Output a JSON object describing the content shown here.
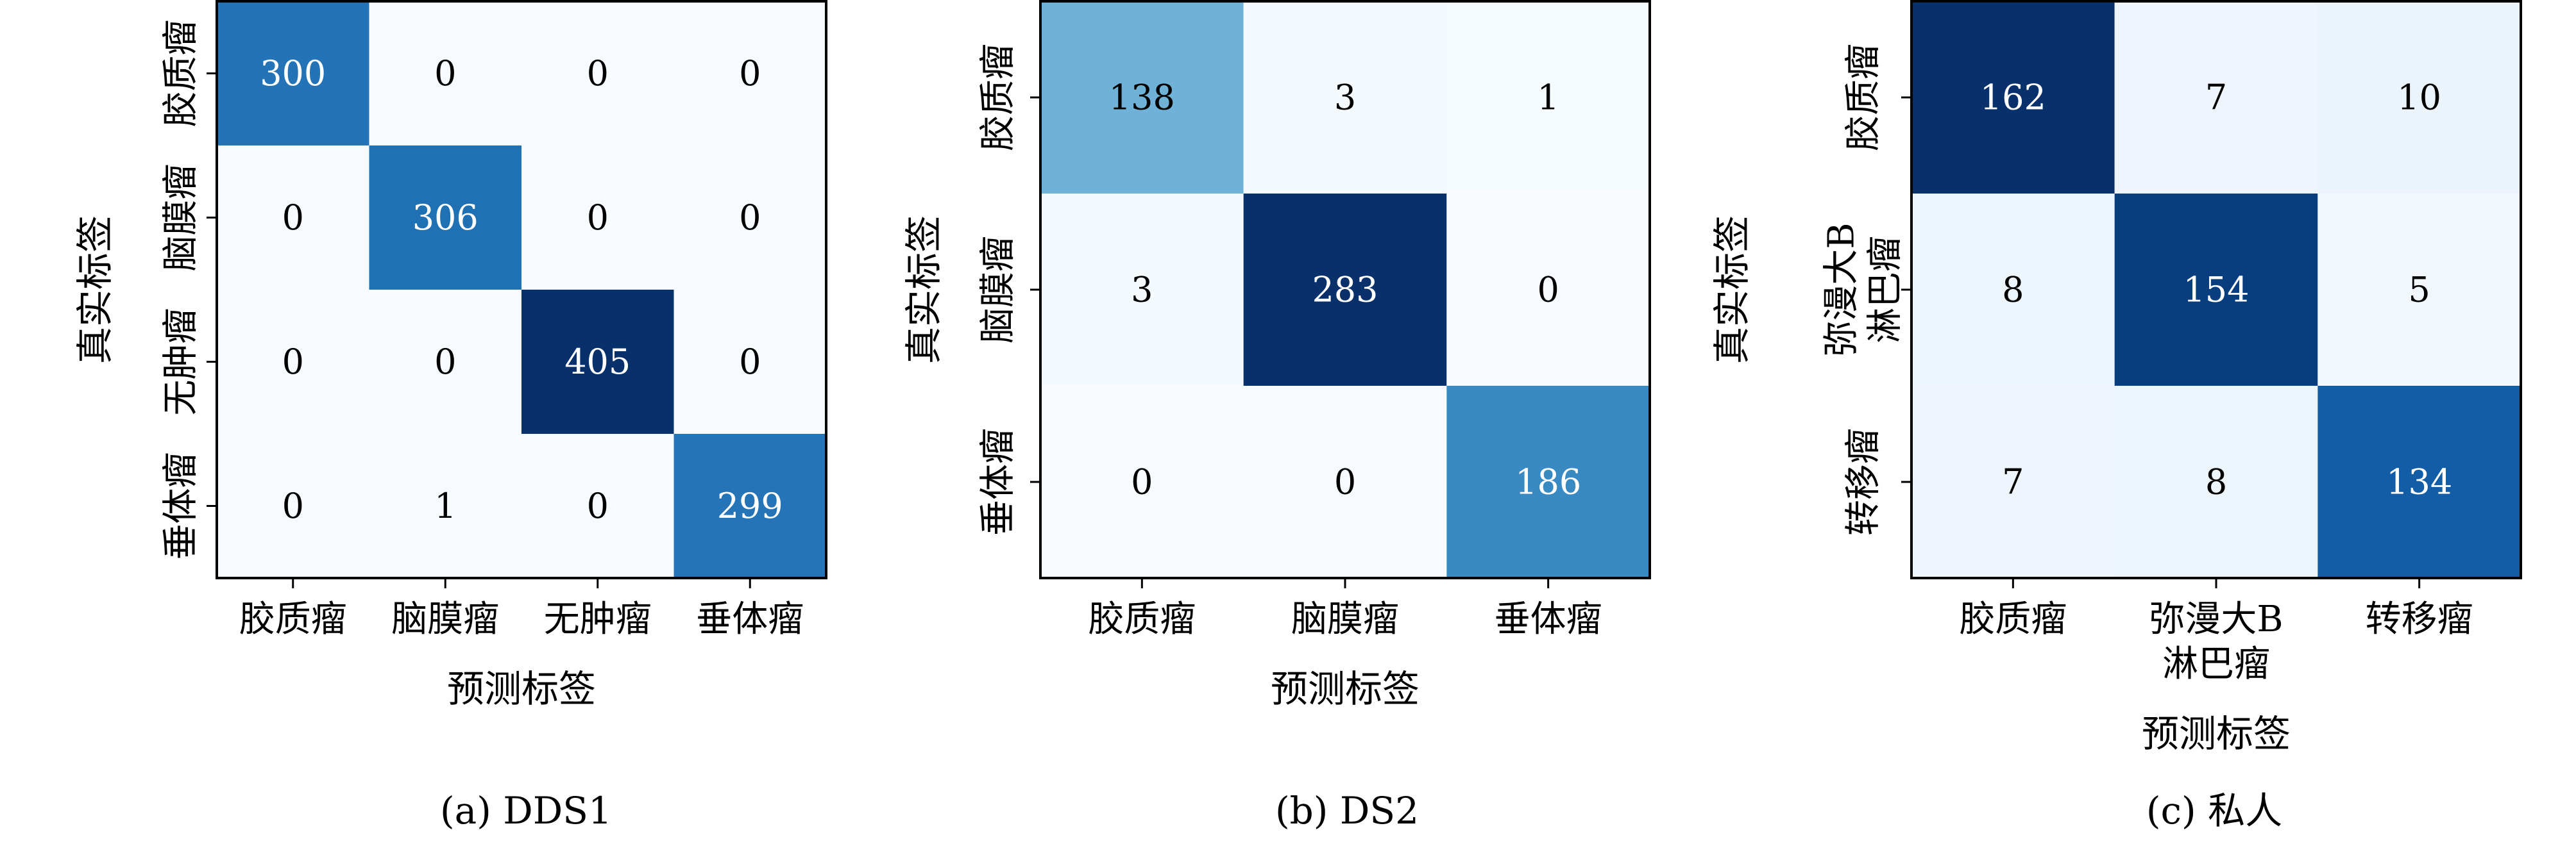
{
  "figure": {
    "colormap": [
      "#f7fbff",
      "#deebf7",
      "#c6dbef",
      "#9ecae1",
      "#6baed6",
      "#4292c6",
      "#2171b5",
      "#08519c",
      "#08306b"
    ]
  },
  "chart_data": [
    {
      "type": "heatmap",
      "title": "(a) DDS1",
      "xlabel": "预测标签",
      "ylabel": "真实标签",
      "x_categories": [
        [
          "胶质瘤"
        ],
        [
          "脑膜瘤"
        ],
        [
          "无肿瘤"
        ],
        [
          "垂体瘤"
        ]
      ],
      "y_categories": [
        [
          "胶质瘤"
        ],
        [
          "脑膜瘤"
        ],
        [
          "无肿瘤"
        ],
        [
          "垂体瘤"
        ]
      ],
      "matrix": [
        [
          300,
          0,
          0,
          0
        ],
        [
          0,
          306,
          0,
          0
        ],
        [
          0,
          0,
          405,
          0
        ],
        [
          0,
          1,
          0,
          299
        ]
      ]
    },
    {
      "type": "heatmap",
      "title": "(b) DS2",
      "xlabel": "预测标签",
      "ylabel": "真实标签",
      "x_categories": [
        [
          "胶质瘤"
        ],
        [
          "脑膜瘤"
        ],
        [
          "垂体瘤"
        ]
      ],
      "y_categories": [
        [
          "胶质瘤"
        ],
        [
          "脑膜瘤"
        ],
        [
          "垂体瘤"
        ]
      ],
      "matrix": [
        [
          138,
          3,
          1
        ],
        [
          3,
          283,
          0
        ],
        [
          0,
          0,
          186
        ]
      ]
    },
    {
      "type": "heatmap",
      "title": "(c) 私人",
      "xlabel": "预测标签",
      "ylabel": "真实标签",
      "x_categories": [
        [
          "胶质瘤"
        ],
        [
          "弥漫大B",
          "淋巴瘤"
        ],
        [
          "转移瘤"
        ]
      ],
      "y_categories": [
        [
          "胶质瘤"
        ],
        [
          "弥漫大B",
          "淋巴瘤"
        ],
        [
          "转移瘤"
        ]
      ],
      "matrix": [
        [
          162,
          7,
          10
        ],
        [
          8,
          154,
          5
        ],
        [
          7,
          8,
          134
        ]
      ]
    }
  ]
}
